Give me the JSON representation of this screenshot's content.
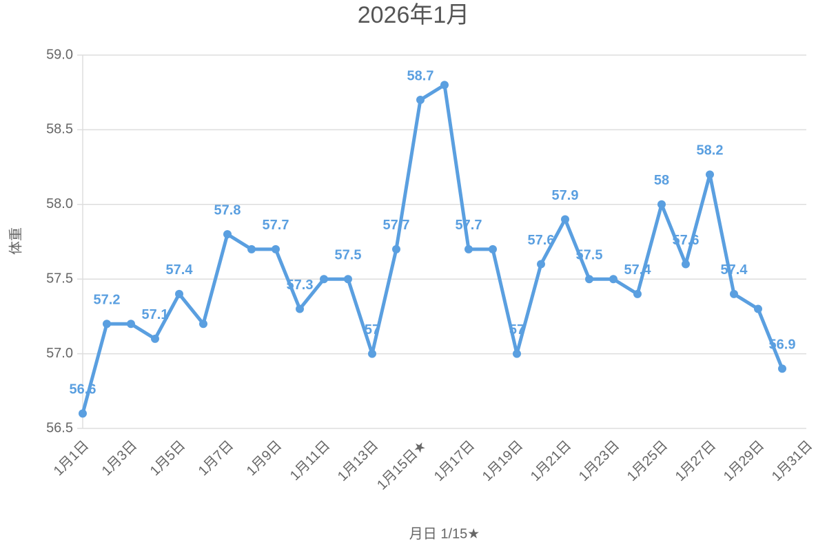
{
  "chart_data": {
    "type": "line",
    "title": "2026年1月",
    "xlabel": "月日 1/15★",
    "ylabel": "体重",
    "categories": [
      "1月1日",
      null,
      "1月3日",
      null,
      "1月5日",
      null,
      "1月7日",
      null,
      "1月9日",
      null,
      "1月11日",
      null,
      "1月13日",
      null,
      "1月15日★",
      null,
      "1月17日",
      null,
      "1月19日",
      null,
      "1月21日",
      null,
      "1月23日",
      null,
      "1月25日",
      null,
      "1月27日",
      null,
      "1月29日",
      null,
      "1月31日"
    ],
    "series": [
      {
        "name": "体重",
        "color": "#5a9fe0",
        "values": [
          56.6,
          57.2,
          57.2,
          57.1,
          57.4,
          57.2,
          57.8,
          57.7,
          57.7,
          57.3,
          57.5,
          57.5,
          57.0,
          57.7,
          58.7,
          58.8,
          57.7,
          57.7,
          57.0,
          57.6,
          57.9,
          57.5,
          57.5,
          57.4,
          58.0,
          57.6,
          58.2,
          57.4,
          57.3,
          56.9,
          null
        ],
        "value_labels": [
          "56.6",
          "57.2",
          null,
          "57.1",
          "57.4",
          null,
          "57.8",
          null,
          "57.7",
          "57.3",
          null,
          "57.5",
          "57",
          "57.7",
          "58.7",
          null,
          "57.7",
          null,
          "57",
          "57.6",
          "57.9",
          "57.5",
          null,
          "57.4",
          "58",
          "57.6",
          "58.2",
          "57.4",
          null,
          "56.9",
          null
        ]
      }
    ],
    "ylim": [
      56.5,
      59.0
    ],
    "yticks": [
      56.5,
      {
        "value": 57.0,
        "label": "57.0"
      },
      57.5,
      {
        "value": 58.0,
        "label": "58.0"
      },
      58.5,
      {
        "value": 59.0,
        "label": "59.0"
      }
    ],
    "grid": true
  }
}
